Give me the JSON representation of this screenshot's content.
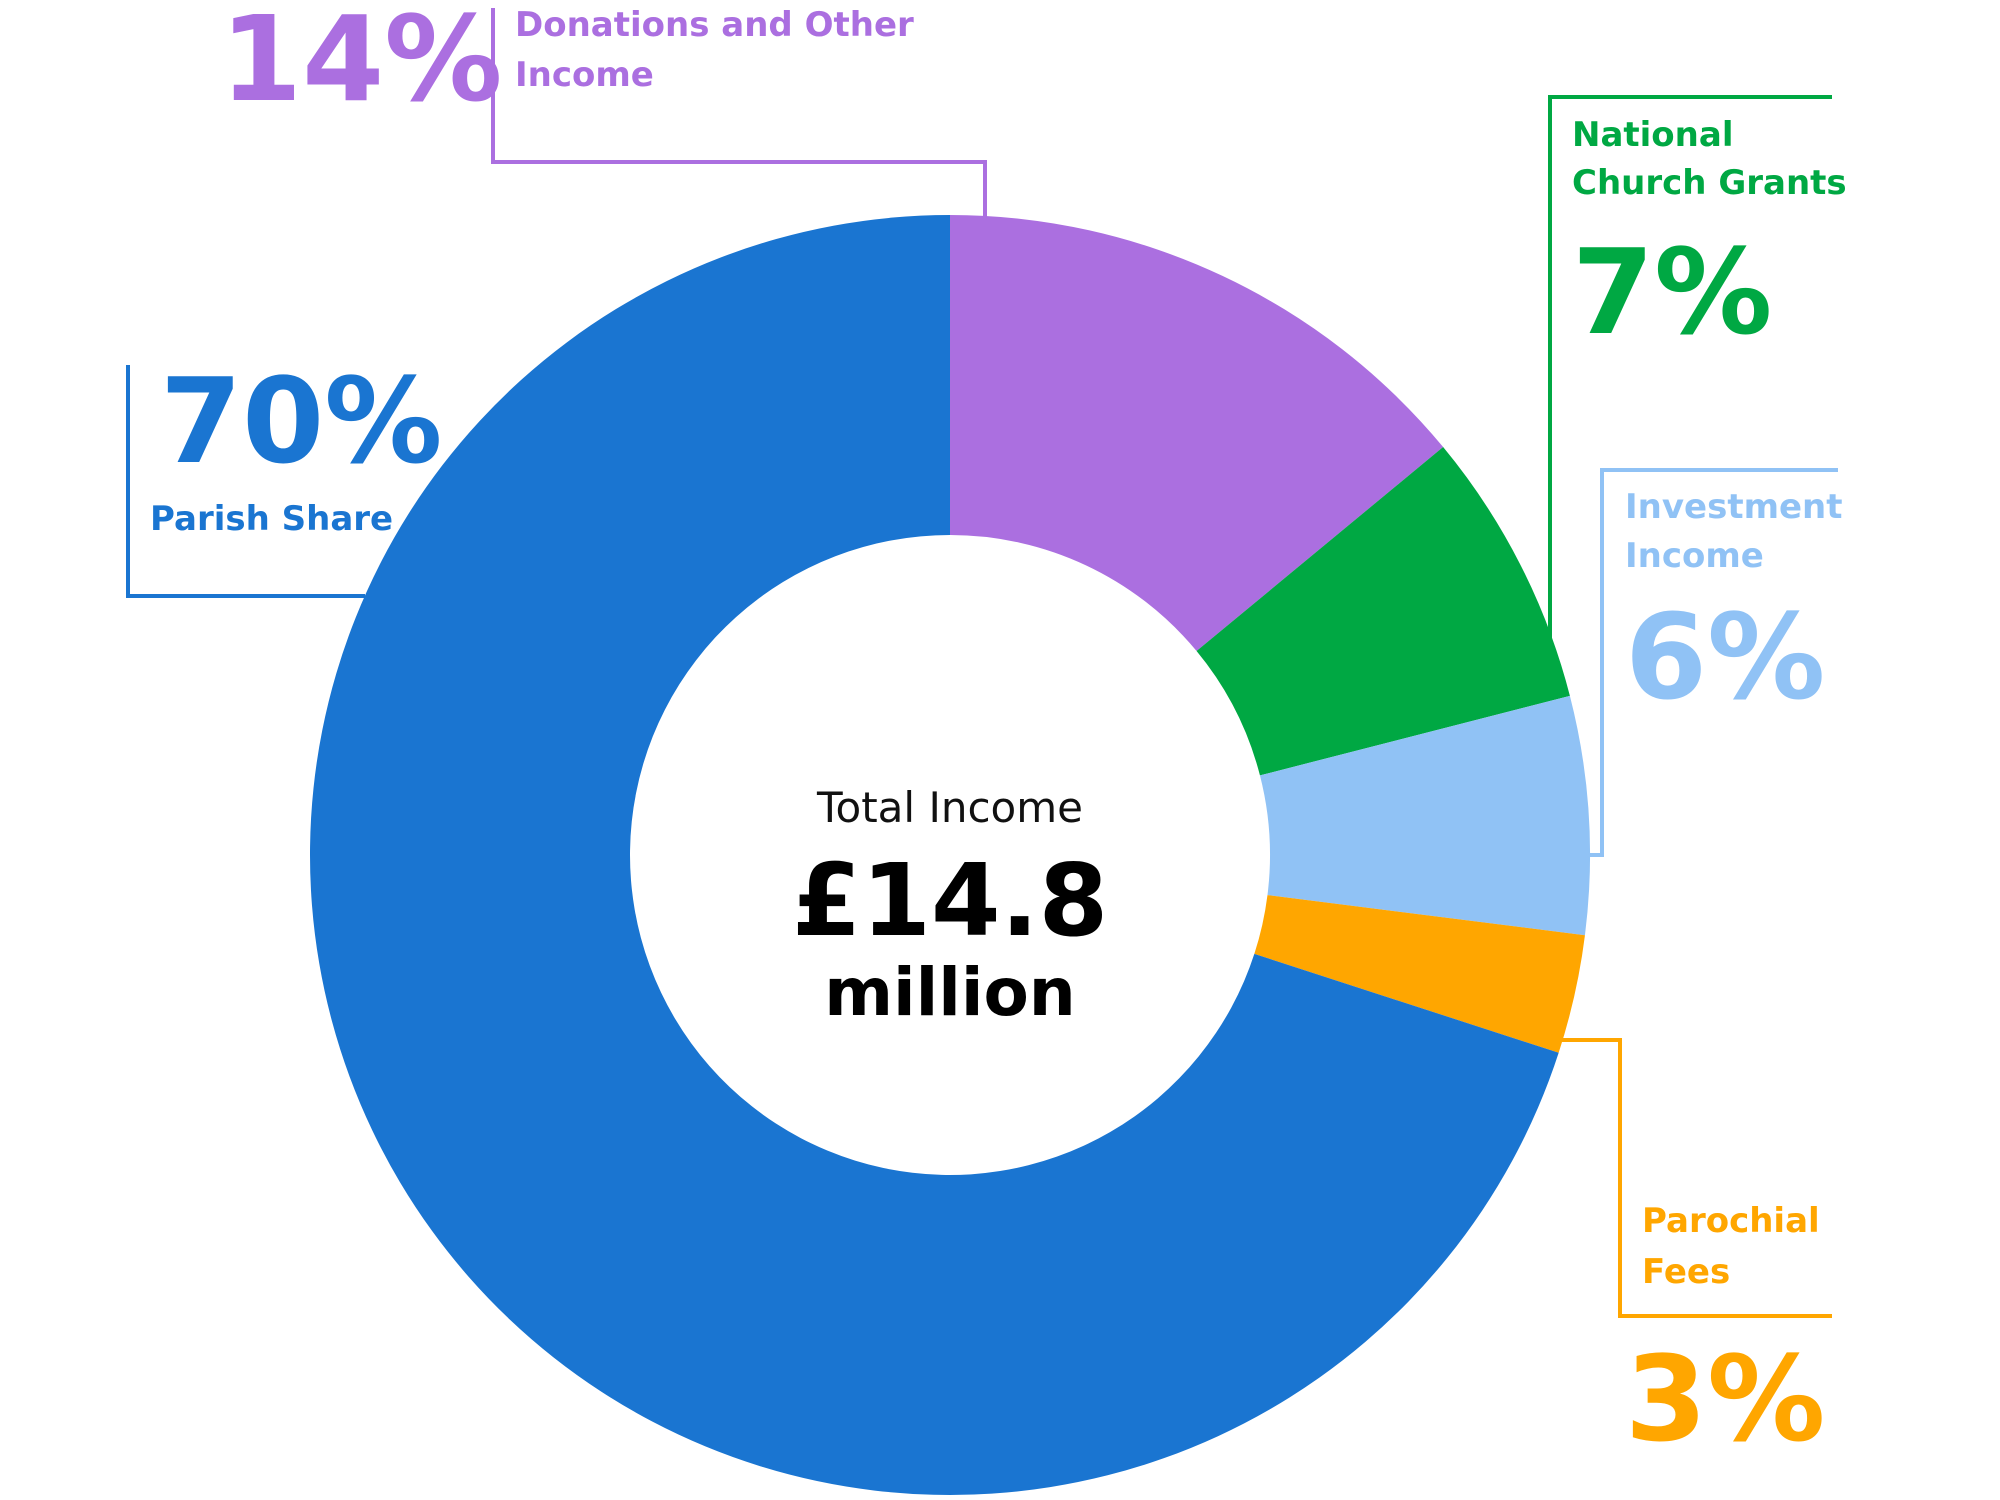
{
  "chart_data": {
    "type": "pie",
    "donut": true,
    "center_label": {
      "caption": "Total Income",
      "value": "£14.8",
      "unit": "million"
    },
    "slices": [
      {
        "name": "Donations and Other Income",
        "line1": "Donations and Other",
        "line2": "Income",
        "value": 14,
        "label": "14%",
        "color": "#ab6fe0"
      },
      {
        "name": "National Church Grants",
        "line1": "National",
        "line2": "Church Grants",
        "value": 7,
        "label": "7%",
        "color": "#00a843"
      },
      {
        "name": "Investment Income",
        "line1": "Investment",
        "line2": "Income",
        "value": 6,
        "label": "6%",
        "color": "#90c2f5"
      },
      {
        "name": "Parochial Fees",
        "line1": "Parochial",
        "line2": "Fees",
        "value": 3,
        "label": "3%",
        "color": "#ffa600"
      },
      {
        "name": "Parish Share",
        "line1": "Parish Share",
        "line2": "",
        "value": 70,
        "label": "70%",
        "color": "#1a75d1"
      }
    ]
  }
}
